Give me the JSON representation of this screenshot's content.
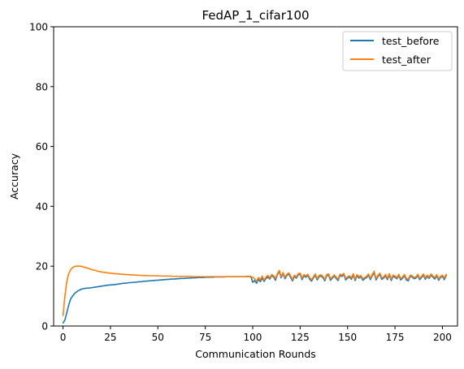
{
  "chart_data": {
    "type": "line",
    "title": "FedAP_1_cifar100",
    "xlabel": "Communication Rounds",
    "ylabel": "Accuracy",
    "xlim": [
      -4.95,
      207.95
    ],
    "ylim": [
      0,
      100
    ],
    "xticks": [
      0,
      25,
      50,
      75,
      100,
      125,
      150,
      175,
      200
    ],
    "yticks": [
      0,
      20,
      40,
      60,
      80,
      100
    ],
    "grid": false,
    "legend_position": "top-right",
    "series": [
      {
        "name": "test_before",
        "color": "#1f77b4",
        "values": [
          1.0,
          2.0,
          4.5,
          7.0,
          9.0,
          10.0,
          10.8,
          11.3,
          11.8,
          12.1,
          12.4,
          12.5,
          12.6,
          12.7,
          12.7,
          12.8,
          12.9,
          13.0,
          13.1,
          13.2,
          13.3,
          13.4,
          13.5,
          13.6,
          13.7,
          13.7,
          13.8,
          13.8,
          13.9,
          14.0,
          14.1,
          14.2,
          14.3,
          14.3,
          14.4,
          14.5,
          14.5,
          14.6,
          14.6,
          14.7,
          14.8,
          14.8,
          14.9,
          15.0,
          15.0,
          15.1,
          15.1,
          15.2,
          15.2,
          15.3,
          15.3,
          15.4,
          15.4,
          15.5,
          15.5,
          15.6,
          15.6,
          15.7,
          15.7,
          15.7,
          15.8,
          15.8,
          15.9,
          15.9,
          15.9,
          16.0,
          16.0,
          16.0,
          16.1,
          16.1,
          16.1,
          16.2,
          16.2,
          16.2,
          16.2,
          16.3,
          16.3,
          16.3,
          16.3,
          16.3,
          16.4,
          16.4,
          16.4,
          16.4,
          16.4,
          16.4,
          16.5,
          16.5,
          16.5,
          16.5,
          16.5,
          16.5,
          16.5,
          16.5,
          16.5,
          16.5,
          16.5,
          16.6,
          16.6,
          16.6,
          14.6,
          15.2,
          14.3,
          15.6,
          14.8,
          16.0,
          14.9,
          15.9,
          16.3,
          15.7,
          16.8,
          16.4,
          15.3,
          17.2,
          18.2,
          16.1,
          17.6,
          15.8,
          16.9,
          17.4,
          16.2,
          15.1,
          16.6,
          16.0,
          17.1,
          17.3,
          15.5,
          16.8,
          16.3,
          16.9,
          15.7,
          15.0,
          16.1,
          17.0,
          15.4,
          16.5,
          16.7,
          16.2,
          15.1,
          16.8,
          17.0,
          15.3,
          16.0,
          16.7,
          15.9,
          15.2,
          16.9,
          16.6,
          17.2,
          15.4,
          16.0,
          16.4,
          15.6,
          17.1,
          15.2,
          16.8,
          16.0,
          16.5,
          15.3,
          15.8,
          16.2,
          17.0,
          15.5,
          16.8,
          17.8,
          15.4,
          16.5,
          17.3,
          15.6,
          16.0,
          16.8,
          15.5,
          17.1,
          15.2,
          16.6,
          16.3,
          15.8,
          16.9,
          15.4,
          16.0,
          16.8,
          15.4,
          15.1,
          16.6,
          16.4,
          15.8,
          16.0,
          16.9,
          15.5,
          16.2,
          17.0,
          15.6,
          16.6,
          15.9,
          17.0,
          16.3,
          15.7,
          16.8,
          15.3,
          16.2,
          16.6,
          15.5,
          16.9
        ]
      },
      {
        "name": "test_after",
        "color": "#ff7f0e",
        "values": [
          3.5,
          10.0,
          15.0,
          17.5,
          18.8,
          19.5,
          19.9,
          20.0,
          20.0,
          20.0,
          19.9,
          19.7,
          19.5,
          19.3,
          19.1,
          18.9,
          18.7,
          18.6,
          18.4,
          18.2,
          18.1,
          18.0,
          17.9,
          17.8,
          17.7,
          17.7,
          17.6,
          17.5,
          17.5,
          17.4,
          17.4,
          17.3,
          17.3,
          17.2,
          17.2,
          17.1,
          17.1,
          17.1,
          17.0,
          17.0,
          17.0,
          16.9,
          16.9,
          16.9,
          16.9,
          16.8,
          16.8,
          16.8,
          16.8,
          16.8,
          16.8,
          16.7,
          16.7,
          16.7,
          16.7,
          16.7,
          16.7,
          16.7,
          16.6,
          16.6,
          16.6,
          16.6,
          16.6,
          16.6,
          16.6,
          16.6,
          16.6,
          16.6,
          16.5,
          16.5,
          16.5,
          16.5,
          16.5,
          16.5,
          16.5,
          16.5,
          16.5,
          16.5,
          16.5,
          16.5,
          16.5,
          16.5,
          16.5,
          16.5,
          16.5,
          16.5,
          16.5,
          16.5,
          16.5,
          16.5,
          16.5,
          16.5,
          16.5,
          16.5,
          16.5,
          16.5,
          16.5,
          16.5,
          16.5,
          16.5,
          16.3,
          15.8,
          14.9,
          16.2,
          15.5,
          16.7,
          15.3,
          16.4,
          16.9,
          16.1,
          17.2,
          16.8,
          15.9,
          17.5,
          18.6,
          16.5,
          17.9,
          16.3,
          17.3,
          17.8,
          16.7,
          15.6,
          17.0,
          16.4,
          17.5,
          17.7,
          16.0,
          17.2,
          16.7,
          17.3,
          16.2,
          15.5,
          16.5,
          17.4,
          15.9,
          16.9,
          17.1,
          16.6,
          15.6,
          17.2,
          17.4,
          15.8,
          16.4,
          17.1,
          16.3,
          15.7,
          17.3,
          17.0,
          17.6,
          15.9,
          16.4,
          16.8,
          16.1,
          17.5,
          15.7,
          17.2,
          16.4,
          16.9,
          15.8,
          16.2,
          16.6,
          17.4,
          16.0,
          17.2,
          18.3,
          15.9,
          16.9,
          17.7,
          16.1,
          16.4,
          17.2,
          16.0,
          17.5,
          15.7,
          17.0,
          16.7,
          16.2,
          17.3,
          15.9,
          16.4,
          17.2,
          15.9,
          15.6,
          17.0,
          16.8,
          16.2,
          16.4,
          17.3,
          16.0,
          16.6,
          17.4,
          16.1,
          17.0,
          16.3,
          17.4,
          16.7,
          16.2,
          17.2,
          15.8,
          16.6,
          17.0,
          16.0,
          17.3
        ]
      }
    ]
  }
}
